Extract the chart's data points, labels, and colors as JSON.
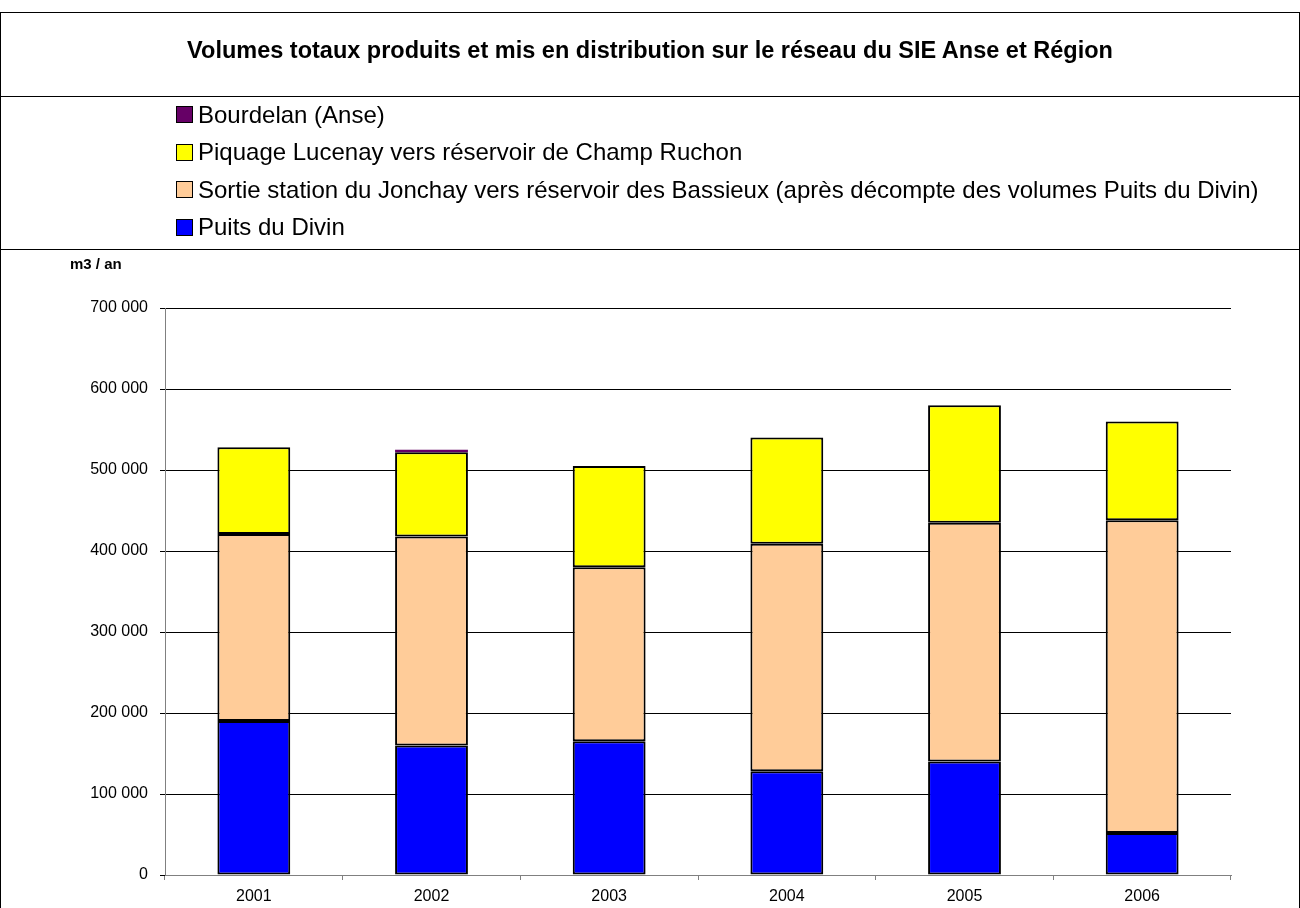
{
  "chart_data": {
    "type": "bar",
    "title": "Volumes totaux produits et mis en distribution sur le réseau du SIE Anse et Région",
    "ylabel": "m3 / an",
    "categories": [
      "2001",
      "2002",
      "2003",
      "2004",
      "2005",
      "2006"
    ],
    "stacked": true,
    "series": [
      {
        "name": "Puits du Divin",
        "color": "#0000ff",
        "values": [
          190000,
          160000,
          165000,
          128000,
          140000,
          52000
        ]
      },
      {
        "name": "Sortie station du Jonchay vers réservoir des Bassieux (après décompte des volumes Puits du Divin)",
        "color": "#ffcc99",
        "values": [
          231000,
          258000,
          215000,
          281000,
          295000,
          386000
        ]
      },
      {
        "name": "Piquage Lucenay vers réservoir de Champ Ruchon",
        "color": "#ffff00",
        "values": [
          107000,
          104000,
          125000,
          131000,
          145000,
          122000
        ]
      },
      {
        "name": "Bourdelan (Anse)",
        "color": "#660066",
        "values": [
          null,
          3000,
          null,
          null,
          null,
          null
        ]
      }
    ],
    "ylim": [
      0,
      700000
    ],
    "yticks": [
      0,
      {
        "value": 100000,
        "label": "100 000"
      },
      {
        "value": 200000,
        "label": "200 000"
      },
      {
        "value": 300000,
        "label": "300 000"
      },
      {
        "value": 400000,
        "label": "400 000"
      },
      {
        "value": 500000,
        "label": "500 000"
      },
      {
        "value": 600000,
        "label": "600 000"
      },
      {
        "value": 700000,
        "label": "700 000"
      }
    ],
    "grid": "y",
    "legend": "top"
  }
}
